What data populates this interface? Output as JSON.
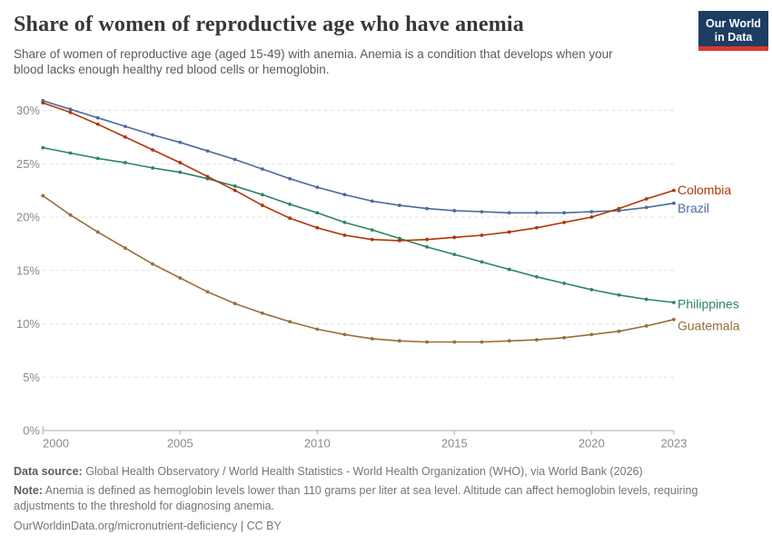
{
  "header": {
    "title": "Share of women of reproductive age who have anemia",
    "subtitle": "Share of women of reproductive age (aged 15-49) with anemia. Anemia is a condition that develops when your blood lacks enough healthy red blood cells or hemoglobin.",
    "logo": {
      "line1": "Our World",
      "line2": "in Data",
      "bg_color": "#1d3d63",
      "accent_color": "#d93a2d"
    }
  },
  "chart_data": {
    "type": "line",
    "title": "Share of women of reproductive age who have anemia",
    "unit": "%",
    "x": [
      2000,
      2001,
      2002,
      2003,
      2004,
      2005,
      2006,
      2007,
      2008,
      2009,
      2010,
      2011,
      2012,
      2013,
      2014,
      2015,
      2016,
      2017,
      2018,
      2019,
      2020,
      2021,
      2022,
      2023
    ],
    "series": [
      {
        "name": "Colombia",
        "color": "#B13507",
        "end_label_dy": 0,
        "values": [
          30.7,
          29.8,
          28.7,
          27.5,
          26.3,
          25.1,
          23.8,
          22.5,
          21.1,
          19.9,
          19.0,
          18.3,
          17.9,
          17.8,
          17.9,
          18.1,
          18.3,
          18.6,
          19.0,
          19.5,
          20.0,
          20.8,
          21.7,
          22.5
        ]
      },
      {
        "name": "Brazil",
        "color": "#4C6A9C",
        "end_label_dy": 6,
        "values": [
          30.9,
          30.1,
          29.3,
          28.5,
          27.7,
          27.0,
          26.2,
          25.4,
          24.5,
          23.6,
          22.8,
          22.1,
          21.5,
          21.1,
          20.8,
          20.6,
          20.5,
          20.4,
          20.4,
          20.4,
          20.5,
          20.6,
          20.9,
          21.3
        ]
      },
      {
        "name": "Philippines",
        "color": "#2C8465",
        "end_label_dy": 2,
        "values": [
          26.5,
          26.0,
          25.5,
          25.1,
          24.6,
          24.2,
          23.6,
          22.9,
          22.1,
          21.2,
          20.4,
          19.5,
          18.8,
          18.0,
          17.2,
          16.5,
          15.8,
          15.1,
          14.4,
          13.8,
          13.2,
          12.7,
          12.3,
          12.0
        ]
      },
      {
        "name": "Guatemala",
        "color": "#996D39",
        "end_label_dy": 7,
        "values": [
          22.0,
          20.2,
          18.6,
          17.1,
          15.6,
          14.3,
          13.0,
          11.9,
          11.0,
          10.2,
          9.5,
          9.0,
          8.6,
          8.4,
          8.3,
          8.3,
          8.3,
          8.4,
          8.5,
          8.7,
          9.0,
          9.3,
          9.8,
          10.4
        ]
      }
    ],
    "ylim": [
      0,
      31
    ],
    "yticks": [
      0,
      5,
      10,
      15,
      20,
      25,
      30
    ],
    "ytick_suffix": "%",
    "xticks": [
      2000,
      2005,
      2010,
      2015,
      2020,
      2023
    ],
    "grid": "horizontal-dashed",
    "legend_position": "end-of-line-labels"
  },
  "footer": {
    "source_label": "Data source:",
    "source_text": "Global Health Observatory / World Health Statistics - World Health Organization (WHO), via World Bank (2026)",
    "note_label": "Note:",
    "note_text": "Anemia is defined as hemoglobin levels lower than 110 grams per liter at sea level. Altitude can affect hemoglobin levels, requiring adjustments to the threshold for diagnosing anemia.",
    "attribution": "OurWorldinData.org/micronutrient-deficiency | CC BY"
  }
}
